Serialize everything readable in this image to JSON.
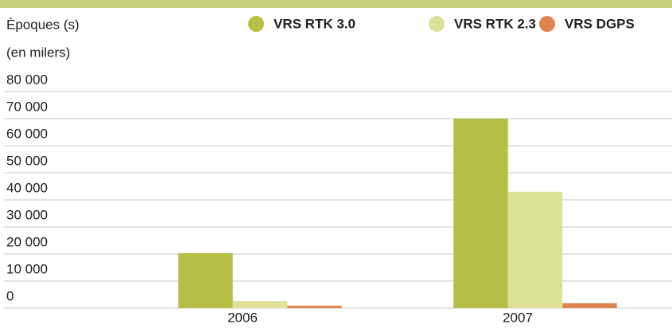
{
  "chart_data": {
    "type": "bar",
    "ylabel": "Èpoques (s)",
    "ylabel_unit": "(en milers)",
    "categories": [
      "2006",
      "2007"
    ],
    "series": [
      {
        "name": "VRS RTK 3.0",
        "color": "#b5c046",
        "values": [
          20300,
          70000
        ]
      },
      {
        "name": "VRS RTK  2.3",
        "color": "#dde29a",
        "values": [
          2600,
          43000
        ]
      },
      {
        "name": "VRS DGPS",
        "color": "#e0854f",
        "values": [
          900,
          1800
        ]
      }
    ],
    "ylim": [
      0,
      80000
    ],
    "yticks": [
      0,
      {
        "value": 10000,
        "label": "10 000"
      },
      {
        "value": 20000,
        "label": "20 000"
      },
      {
        "value": 30000,
        "label": "30 000"
      },
      {
        "value": 40000,
        "label": "40 000"
      },
      {
        "value": 50000,
        "label": "50 000"
      },
      {
        "value": 60000,
        "label": "60 000"
      },
      {
        "value": 70000,
        "label": "70 000"
      },
      {
        "value": 80000,
        "label": "80 000"
      }
    ],
    "grid": true,
    "legend": "top-right"
  }
}
